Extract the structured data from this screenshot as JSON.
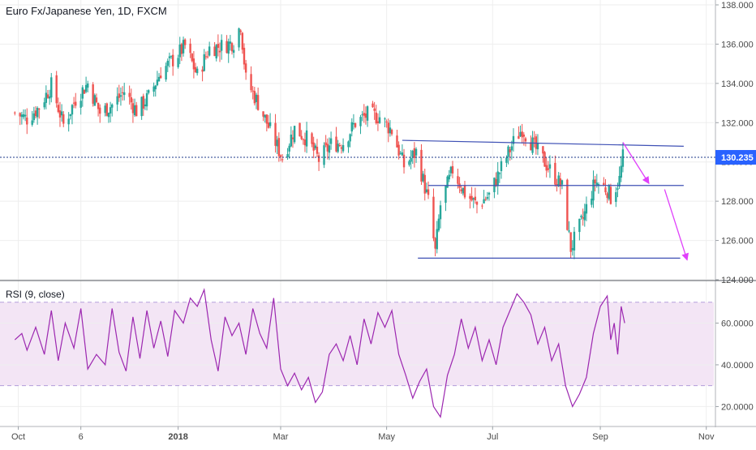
{
  "titles": {
    "price": "Euro Fx/Japanese Yen, 1D, FXCM",
    "rsi": "RSI (9, close)"
  },
  "colors": {
    "up": "#26a69a",
    "down": "#ef5350",
    "rsi_line": "#9c27b0",
    "rsi_band": "#f3e5f5",
    "trendline": "#3f51b5",
    "arrow": "#e040fb",
    "last_price_line": "#1e3a8a",
    "last_price_tag": "#2962ff",
    "grid": "#eeeeee"
  },
  "chart_data": [
    {
      "type": "candlestick",
      "title": "Euro Fx/Japanese Yen, 1D, FXCM",
      "ylim": [
        124.0,
        138.0
      ],
      "ticks": [
        "124.000",
        "126.000",
        "128.000",
        "130.000",
        "132.000",
        "134.000",
        "136.000",
        "138.000"
      ],
      "last_price": "130.235",
      "x_ticks": [
        "Oct",
        "6",
        "2018",
        "Mar",
        "May",
        "Jul",
        "Sep",
        "Nov"
      ],
      "close_path": [
        {
          "d": "2017-09-29",
          "c": 132.5
        },
        {
          "d": "2017-10-06",
          "c": 132.2
        },
        {
          "d": "2017-10-13",
          "c": 132.8
        },
        {
          "d": "2017-10-20",
          "c": 133.9
        },
        {
          "d": "2017-10-27",
          "c": 131.9
        },
        {
          "d": "2017-11-03",
          "c": 133.2
        },
        {
          "d": "2017-11-10",
          "c": 134.0
        },
        {
          "d": "2017-11-17",
          "c": 132.5
        },
        {
          "d": "2017-11-24",
          "c": 132.9
        },
        {
          "d": "2017-12-01",
          "c": 133.6
        },
        {
          "d": "2017-12-08",
          "c": 132.6
        },
        {
          "d": "2017-12-15",
          "c": 133.3
        },
        {
          "d": "2017-12-22",
          "c": 134.6
        },
        {
          "d": "2017-12-29",
          "c": 135.2
        },
        {
          "d": "2018-01-05",
          "c": 135.9
        },
        {
          "d": "2018-01-12",
          "c": 134.4
        },
        {
          "d": "2018-01-19",
          "c": 135.8
        },
        {
          "d": "2018-01-26",
          "c": 135.9
        },
        {
          "d": "2018-02-02",
          "c": 136.1
        },
        {
          "d": "2018-02-06",
          "c": 137.0
        },
        {
          "d": "2018-02-09",
          "c": 134.2
        },
        {
          "d": "2018-02-16",
          "c": 133.0
        },
        {
          "d": "2018-02-23",
          "c": 131.6
        },
        {
          "d": "2018-03-02",
          "c": 130.2
        },
        {
          "d": "2018-03-09",
          "c": 131.7
        },
        {
          "d": "2018-03-16",
          "c": 131.2
        },
        {
          "d": "2018-03-23",
          "c": 130.1
        },
        {
          "d": "2018-03-30",
          "c": 130.9
        },
        {
          "d": "2018-04-06",
          "c": 131.0
        },
        {
          "d": "2018-04-13",
          "c": 132.0
        },
        {
          "d": "2018-04-20",
          "c": 132.4
        },
        {
          "d": "2018-04-27",
          "c": 132.3
        },
        {
          "d": "2018-05-04",
          "c": 131.6
        },
        {
          "d": "2018-05-11",
          "c": 129.8
        },
        {
          "d": "2018-05-18",
          "c": 130.5
        },
        {
          "d": "2018-05-25",
          "c": 128.0
        },
        {
          "d": "2018-05-29",
          "c": 125.4
        },
        {
          "d": "2018-06-01",
          "c": 127.8
        },
        {
          "d": "2018-06-08",
          "c": 129.6
        },
        {
          "d": "2018-06-15",
          "c": 128.4
        },
        {
          "d": "2018-06-22",
          "c": 127.8
        },
        {
          "d": "2018-06-29",
          "c": 128.3
        },
        {
          "d": "2018-07-06",
          "c": 129.7
        },
        {
          "d": "2018-07-13",
          "c": 131.0
        },
        {
          "d": "2018-07-18",
          "c": 131.7
        },
        {
          "d": "2018-07-27",
          "c": 130.5
        },
        {
          "d": "2018-08-03",
          "c": 129.6
        },
        {
          "d": "2018-08-10",
          "c": 128.7
        },
        {
          "d": "2018-08-15",
          "c": 125.6
        },
        {
          "d": "2018-08-22",
          "c": 127.1
        },
        {
          "d": "2018-08-29",
          "c": 129.0
        },
        {
          "d": "2018-09-05",
          "c": 128.6
        },
        {
          "d": "2018-09-07",
          "c": 128.2
        },
        {
          "d": "2018-09-12",
          "c": 129.1
        },
        {
          "d": "2018-09-14",
          "c": 130.235
        }
      ],
      "trendlines": [
        {
          "from": {
            "d": "2018-05-10",
            "v": 131.1
          },
          "to": {
            "d": "2018-10-19",
            "v": 130.8
          }
        },
        {
          "from": {
            "d": "2018-05-25",
            "v": 128.8
          },
          "to": {
            "d": "2018-10-19",
            "v": 128.8
          }
        },
        {
          "from": {
            "d": "2018-05-19",
            "v": 125.1
          },
          "to": {
            "d": "2018-10-17",
            "v": 125.1
          }
        }
      ],
      "arrows": [
        {
          "from": {
            "d": "2018-09-14",
            "v": 131.0
          },
          "to": {
            "d": "2018-09-29",
            "v": 128.9
          }
        },
        {
          "from": {
            "d": "2018-10-08",
            "v": 128.6
          },
          "to": {
            "d": "2018-10-21",
            "v": 125.0
          }
        }
      ]
    },
    {
      "type": "line",
      "title": "RSI (9, close)",
      "ylim": [
        12.0,
        80.0
      ],
      "ticks": [
        "20.0000",
        "40.0000",
        "60.0000"
      ],
      "band": [
        30,
        70
      ],
      "series": [
        {
          "points": [
            {
              "d": "2017-09-29",
              "v": 52
            },
            {
              "d": "2017-10-03",
              "v": 55
            },
            {
              "d": "2017-10-06",
              "v": 47
            },
            {
              "d": "2017-10-11",
              "v": 58
            },
            {
              "d": "2017-10-16",
              "v": 45
            },
            {
              "d": "2017-10-20",
              "v": 66
            },
            {
              "d": "2017-10-24",
              "v": 42
            },
            {
              "d": "2017-10-28",
              "v": 60
            },
            {
              "d": "2017-11-02",
              "v": 48
            },
            {
              "d": "2017-11-06",
              "v": 67
            },
            {
              "d": "2017-11-10",
              "v": 38
            },
            {
              "d": "2017-11-15",
              "v": 45
            },
            {
              "d": "2017-11-20",
              "v": 40
            },
            {
              "d": "2017-11-24",
              "v": 67
            },
            {
              "d": "2017-11-28",
              "v": 46
            },
            {
              "d": "2017-12-02",
              "v": 37
            },
            {
              "d": "2017-12-06",
              "v": 63
            },
            {
              "d": "2017-12-10",
              "v": 43
            },
            {
              "d": "2017-12-14",
              "v": 66
            },
            {
              "d": "2017-12-18",
              "v": 48
            },
            {
              "d": "2017-12-22",
              "v": 61
            },
            {
              "d": "2017-12-26",
              "v": 44
            },
            {
              "d": "2017-12-30",
              "v": 66
            },
            {
              "d": "2018-01-04",
              "v": 60
            },
            {
              "d": "2018-01-08",
              "v": 72
            },
            {
              "d": "2018-01-12",
              "v": 68
            },
            {
              "d": "2018-01-16",
              "v": 76
            },
            {
              "d": "2018-01-20",
              "v": 52
            },
            {
              "d": "2018-01-24",
              "v": 37
            },
            {
              "d": "2018-01-28",
              "v": 63
            },
            {
              "d": "2018-02-01",
              "v": 54
            },
            {
              "d": "2018-02-05",
              "v": 60
            },
            {
              "d": "2018-02-09",
              "v": 45
            },
            {
              "d": "2018-02-13",
              "v": 67
            },
            {
              "d": "2018-02-17",
              "v": 55
            },
            {
              "d": "2018-02-21",
              "v": 48
            },
            {
              "d": "2018-02-25",
              "v": 72
            },
            {
              "d": "2018-03-01",
              "v": 38
            },
            {
              "d": "2018-03-05",
              "v": 30
            },
            {
              "d": "2018-03-09",
              "v": 36
            },
            {
              "d": "2018-03-13",
              "v": 28
            },
            {
              "d": "2018-03-17",
              "v": 34
            },
            {
              "d": "2018-03-21",
              "v": 22
            },
            {
              "d": "2018-03-25",
              "v": 27
            },
            {
              "d": "2018-03-29",
              "v": 45
            },
            {
              "d": "2018-04-02",
              "v": 50
            },
            {
              "d": "2018-04-06",
              "v": 42
            },
            {
              "d": "2018-04-10",
              "v": 54
            },
            {
              "d": "2018-04-14",
              "v": 40
            },
            {
              "d": "2018-04-18",
              "v": 62
            },
            {
              "d": "2018-04-22",
              "v": 50
            },
            {
              "d": "2018-04-26",
              "v": 65
            },
            {
              "d": "2018-04-30",
              "v": 58
            },
            {
              "d": "2018-05-04",
              "v": 66
            },
            {
              "d": "2018-05-08",
              "v": 45
            },
            {
              "d": "2018-05-12",
              "v": 35
            },
            {
              "d": "2018-05-16",
              "v": 24
            },
            {
              "d": "2018-05-20",
              "v": 32
            },
            {
              "d": "2018-05-24",
              "v": 38
            },
            {
              "d": "2018-05-28",
              "v": 20
            },
            {
              "d": "2018-06-01",
              "v": 15
            },
            {
              "d": "2018-06-05",
              "v": 35
            },
            {
              "d": "2018-06-09",
              "v": 45
            },
            {
              "d": "2018-06-13",
              "v": 62
            },
            {
              "d": "2018-06-17",
              "v": 48
            },
            {
              "d": "2018-06-21",
              "v": 58
            },
            {
              "d": "2018-06-25",
              "v": 42
            },
            {
              "d": "2018-06-29",
              "v": 52
            },
            {
              "d": "2018-07-03",
              "v": 40
            },
            {
              "d": "2018-07-07",
              "v": 58
            },
            {
              "d": "2018-07-11",
              "v": 66
            },
            {
              "d": "2018-07-15",
              "v": 74
            },
            {
              "d": "2018-07-19",
              "v": 70
            },
            {
              "d": "2018-07-23",
              "v": 64
            },
            {
              "d": "2018-07-27",
              "v": 50
            },
            {
              "d": "2018-07-31",
              "v": 58
            },
            {
              "d": "2018-08-04",
              "v": 42
            },
            {
              "d": "2018-08-08",
              "v": 50
            },
            {
              "d": "2018-08-12",
              "v": 30
            },
            {
              "d": "2018-08-16",
              "v": 20
            },
            {
              "d": "2018-08-20",
              "v": 26
            },
            {
              "d": "2018-08-24",
              "v": 34
            },
            {
              "d": "2018-08-28",
              "v": 55
            },
            {
              "d": "2018-09-01",
              "v": 68
            },
            {
              "d": "2018-09-05",
              "v": 73
            },
            {
              "d": "2018-09-07",
              "v": 52
            },
            {
              "d": "2018-09-09",
              "v": 60
            },
            {
              "d": "2018-09-11",
              "v": 45
            },
            {
              "d": "2018-09-13",
              "v": 68
            },
            {
              "d": "2018-09-15",
              "v": 60
            }
          ]
        }
      ]
    }
  ]
}
